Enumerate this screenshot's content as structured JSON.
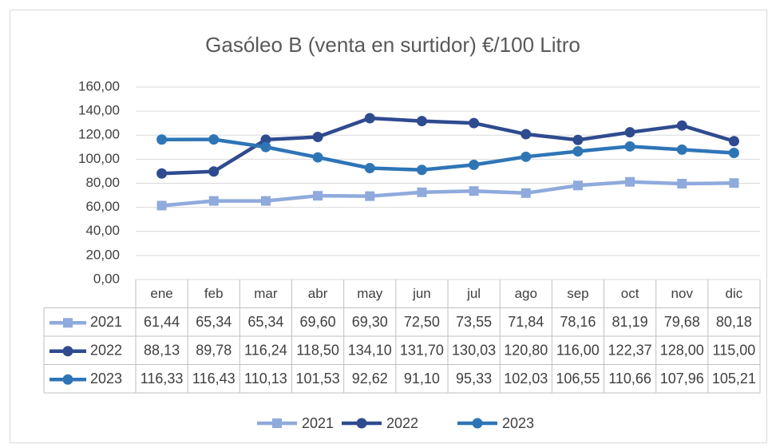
{
  "chart_data": {
    "type": "line",
    "title": "Gasóleo B (venta en surtidor) €/100 Litro",
    "categories": [
      "ene",
      "feb",
      "mar",
      "abr",
      "may",
      "jun",
      "jul",
      "ago",
      "sep",
      "oct",
      "nov",
      "dic"
    ],
    "series": [
      {
        "name": "2021",
        "color": "#8faadc",
        "marker": "square",
        "values": [
          61.44,
          65.34,
          65.34,
          69.6,
          69.3,
          72.5,
          73.55,
          71.84,
          78.16,
          81.19,
          79.68,
          80.18
        ],
        "value_labels": [
          "61,44",
          "65,34",
          "65,34",
          "69,60",
          "69,30",
          "72,50",
          "73,55",
          "71,84",
          "78,16",
          "81,19",
          "79,68",
          "80,18"
        ]
      },
      {
        "name": "2022",
        "color": "#2f4b8f",
        "marker": "circle",
        "values": [
          88.13,
          89.78,
          116.24,
          118.5,
          134.1,
          131.7,
          130.03,
          120.8,
          116.0,
          122.37,
          128.0,
          115.0
        ],
        "value_labels": [
          "88,13",
          "89,78",
          "116,24",
          "118,50",
          "134,10",
          "131,70",
          "130,03",
          "120,80",
          "116,00",
          "122,37",
          "128,00",
          "115,00"
        ]
      },
      {
        "name": "2023",
        "color": "#2e75b6",
        "marker": "circle",
        "values": [
          116.33,
          116.43,
          110.13,
          101.53,
          92.62,
          91.1,
          95.33,
          102.03,
          106.55,
          110.66,
          107.96,
          105.21
        ],
        "value_labels": [
          "116,33",
          "116,43",
          "110,13",
          "101,53",
          "92,62",
          "91,10",
          "95,33",
          "102,03",
          "106,55",
          "110,66",
          "107,96",
          "105,21"
        ]
      }
    ],
    "ylim": [
      0,
      160
    ],
    "yticks": [
      {
        "value": 0,
        "label": "0,00"
      },
      {
        "value": 20,
        "label": "20,00"
      },
      {
        "value": 40,
        "label": "40,00"
      },
      {
        "value": 60,
        "label": "60,00"
      },
      {
        "value": 80,
        "label": "80,00"
      },
      {
        "value": 100,
        "label": "100,00"
      },
      {
        "value": 120,
        "label": "120,00"
      },
      {
        "value": 140,
        "label": "140,00"
      },
      {
        "value": 160,
        "label": "160,00"
      }
    ],
    "grid": true,
    "legend": "bottom",
    "data_table": true
  }
}
